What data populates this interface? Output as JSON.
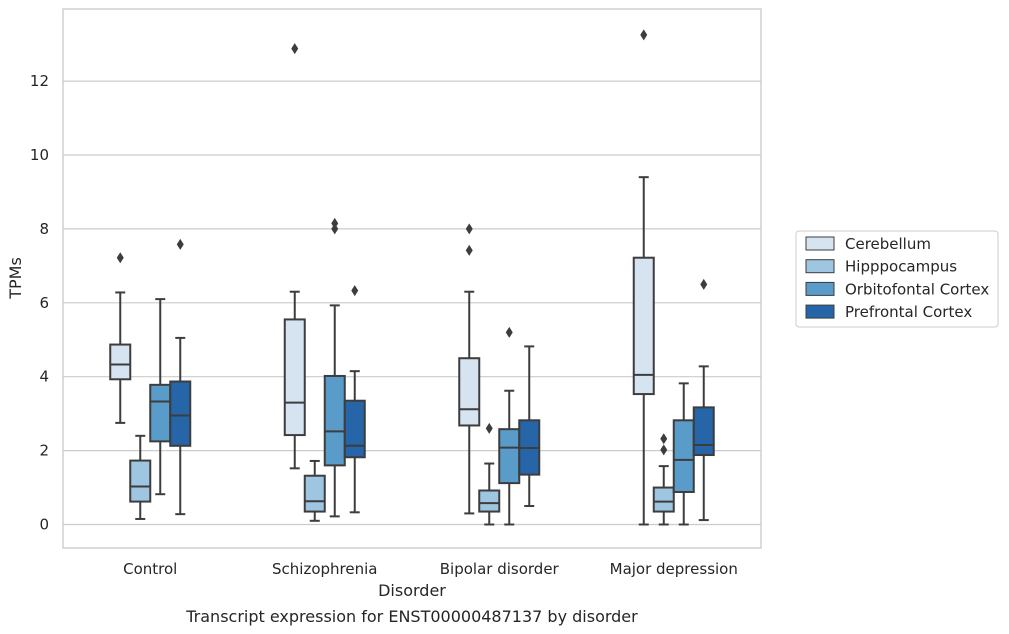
{
  "chart_data": {
    "type": "box",
    "title": "",
    "caption": "Transcript expression for ENST00000487137 by disorder",
    "xlabel": "Disorder",
    "ylabel": "TPMs",
    "ylim": [
      -0.65,
      13.9
    ],
    "yticks": [
      0,
      2,
      4,
      6,
      8,
      10,
      12
    ],
    "grid": "horizontal",
    "legend_position": "right",
    "categories": [
      "Control",
      "Schizophrenia",
      "Bipolar disorder",
      "Major depression"
    ],
    "series": [
      {
        "name": "Cerebellum",
        "color": "#d6e4f2",
        "boxes": [
          {
            "whislo": 2.75,
            "q1": 3.93,
            "med": 4.33,
            "q3": 4.87,
            "whishi": 6.28,
            "fliers": [
              7.22
            ]
          },
          {
            "whislo": 1.52,
            "q1": 2.42,
            "med": 3.3,
            "q3": 5.55,
            "whishi": 6.3,
            "fliers": [
              12.88
            ]
          },
          {
            "whislo": 0.3,
            "q1": 2.68,
            "med": 3.12,
            "q3": 4.5,
            "whishi": 6.3,
            "fliers": [
              7.42,
              8.0
            ]
          },
          {
            "whislo": 0.0,
            "q1": 3.53,
            "med": 4.05,
            "q3": 7.22,
            "whishi": 9.4,
            "fliers": [
              13.25
            ]
          }
        ]
      },
      {
        "name": "Hipppocampus",
        "color": "#9fc6e0",
        "boxes": [
          {
            "whislo": 0.15,
            "q1": 0.62,
            "med": 1.03,
            "q3": 1.73,
            "whishi": 2.4,
            "fliers": []
          },
          {
            "whislo": 0.1,
            "q1": 0.35,
            "med": 0.63,
            "q3": 1.32,
            "whishi": 1.72,
            "fliers": []
          },
          {
            "whislo": 0.0,
            "q1": 0.35,
            "med": 0.58,
            "q3": 0.92,
            "whishi": 1.65,
            "fliers": [
              2.6
            ]
          },
          {
            "whislo": 0.0,
            "q1": 0.35,
            "med": 0.62,
            "q3": 1.0,
            "whishi": 1.58,
            "fliers": [
              2.02,
              2.32
            ]
          }
        ]
      },
      {
        "name": "Orbitofontal Cortex",
        "color": "#5a9cc9",
        "boxes": [
          {
            "whislo": 0.82,
            "q1": 2.25,
            "med": 3.33,
            "q3": 3.78,
            "whishi": 6.1,
            "fliers": []
          },
          {
            "whislo": 0.22,
            "q1": 1.6,
            "med": 2.52,
            "q3": 4.02,
            "whishi": 5.93,
            "fliers": [
              8.0,
              8.15
            ]
          },
          {
            "whislo": 0.0,
            "q1": 1.12,
            "med": 2.08,
            "q3": 2.58,
            "whishi": 3.62,
            "fliers": [
              5.2
            ]
          },
          {
            "whislo": 0.0,
            "q1": 0.88,
            "med": 1.75,
            "q3": 2.82,
            "whishi": 3.82,
            "fliers": []
          }
        ]
      },
      {
        "name": "Prefrontal Cortex",
        "color": "#2565a8",
        "boxes": [
          {
            "whislo": 0.28,
            "q1": 2.13,
            "med": 2.95,
            "q3": 3.87,
            "whishi": 5.05,
            "fliers": [
              7.58
            ]
          },
          {
            "whislo": 0.33,
            "q1": 1.82,
            "med": 2.13,
            "q3": 3.35,
            "whishi": 4.15,
            "fliers": [
              6.33
            ]
          },
          {
            "whislo": 0.5,
            "q1": 1.35,
            "med": 2.07,
            "q3": 2.82,
            "whishi": 4.82,
            "fliers": []
          },
          {
            "whislo": 0.12,
            "q1": 1.88,
            "med": 2.15,
            "q3": 3.17,
            "whishi": 4.28,
            "fliers": [
              6.5
            ]
          }
        ]
      }
    ]
  }
}
